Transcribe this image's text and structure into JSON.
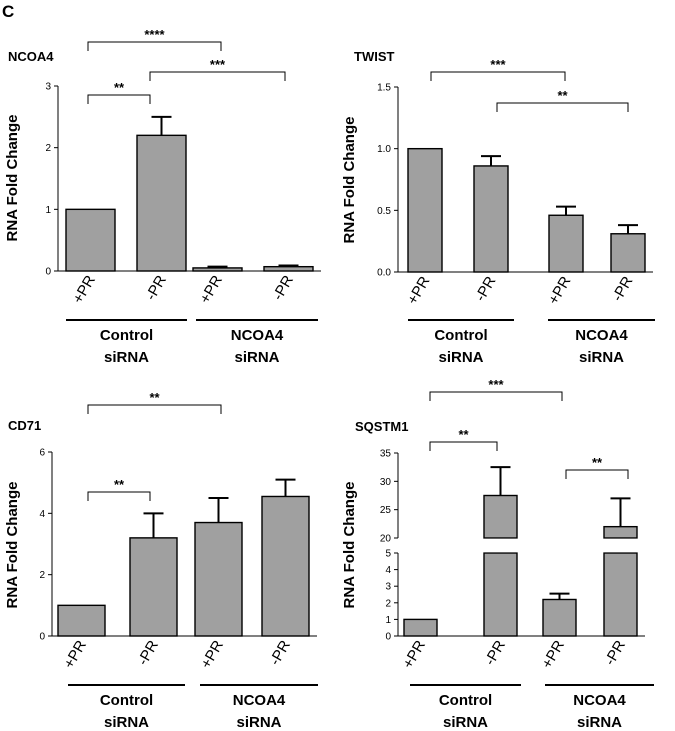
{
  "figure": {
    "panel_letter": "C"
  },
  "chart_data": [
    {
      "type": "bar",
      "title": "NCOA4",
      "ylabel": "RNA Fold Change",
      "xlabel": "",
      "categories": [
        "+PR",
        "-PR",
        "+PR",
        "-PR"
      ],
      "values": [
        1.0,
        2.2,
        0.05,
        0.07
      ],
      "errors": [
        0,
        0.3,
        0.02,
        0.02
      ],
      "ylim": [
        0,
        3
      ],
      "yticks": [
        "0",
        "1",
        "2",
        "3"
      ],
      "groups": [
        {
          "label_line1": "Control",
          "label_line2": "siRNA"
        },
        {
          "label_line1": "NCOA4",
          "label_line2": "siRNA"
        }
      ],
      "significance": [
        {
          "label": "**"
        },
        {
          "label": "****"
        },
        {
          "label": "***"
        }
      ]
    },
    {
      "type": "bar",
      "title": "TWIST",
      "ylabel": "RNA Fold Change",
      "xlabel": "",
      "categories": [
        "+PR",
        "-PR",
        "+PR",
        "-PR"
      ],
      "values": [
        1.0,
        0.86,
        0.46,
        0.31
      ],
      "errors": [
        0,
        0.08,
        0.07,
        0.07
      ],
      "ylim": [
        0,
        1.5
      ],
      "yticks": [
        "0.0",
        "0.5",
        "1.0",
        "1.5"
      ],
      "groups": [
        {
          "label_line1": "Control",
          "label_line2": "siRNA"
        },
        {
          "label_line1": "NCOA4",
          "label_line2": "siRNA"
        }
      ],
      "significance": [
        {
          "label": "***"
        },
        {
          "label": "**"
        }
      ]
    },
    {
      "type": "bar",
      "title": "CD71",
      "ylabel": "RNA Fold Change",
      "xlabel": "",
      "categories": [
        "+PR",
        "-PR",
        "+PR",
        "-PR"
      ],
      "values": [
        1.0,
        3.2,
        3.7,
        4.55
      ],
      "errors": [
        0,
        0.8,
        0.8,
        0.55
      ],
      "ylim": [
        0,
        6
      ],
      "yticks": [
        "0",
        "2",
        "4",
        "6"
      ],
      "groups": [
        {
          "label_line1": "Control",
          "label_line2": "siRNA"
        },
        {
          "label_line1": "NCOA4",
          "label_line2": "siRNA"
        }
      ],
      "significance": [
        {
          "label": "**"
        },
        {
          "label": "**"
        }
      ]
    },
    {
      "type": "bar",
      "title": "SQSTM1",
      "ylabel": "RNA Fold Change",
      "xlabel": "",
      "broken_axis": true,
      "categories": [
        "+PR",
        "-PR",
        "+PR",
        "-PR"
      ],
      "values": [
        1.0,
        27.5,
        2.2,
        22.0
      ],
      "errors": [
        0,
        5.0,
        0.35,
        5.0
      ],
      "ylim_lower": [
        0,
        5
      ],
      "ylim_upper": [
        20,
        35
      ],
      "yticks_lower": [
        "0",
        "1",
        "2",
        "3",
        "4",
        "5"
      ],
      "yticks_upper": [
        "20",
        "25",
        "30",
        "35"
      ],
      "groups": [
        {
          "label_line1": "Control",
          "label_line2": "siRNA"
        },
        {
          "label_line1": "NCOA4",
          "label_line2": "siRNA"
        }
      ],
      "significance": [
        {
          "label": "**"
        },
        {
          "label": "***"
        },
        {
          "label": "**"
        }
      ]
    }
  ]
}
